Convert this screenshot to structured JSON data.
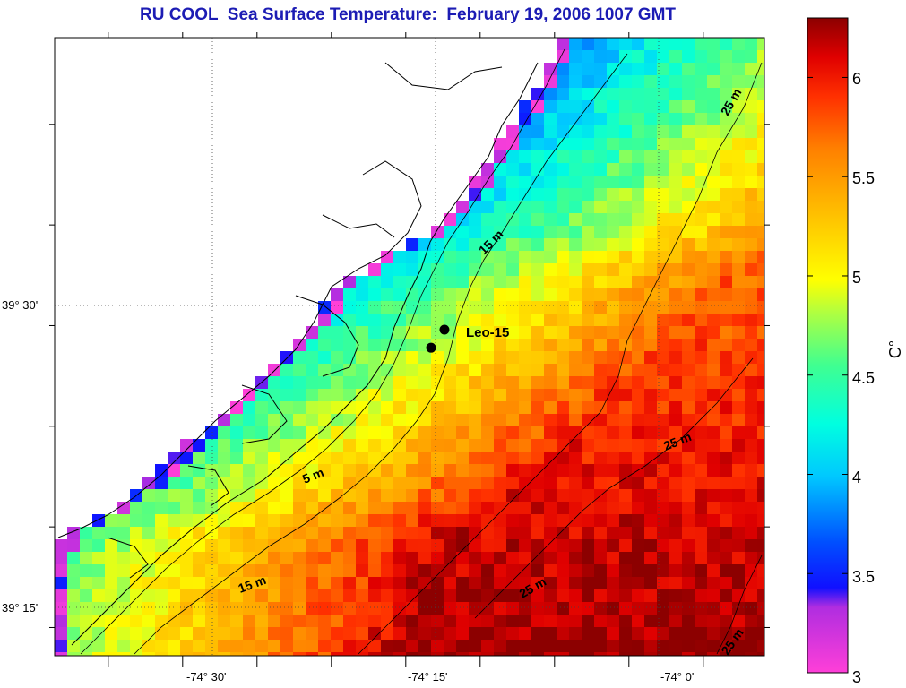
{
  "title": "RU COOL  Sea Surface Temperature:  February 19, 2006 1007 GMT",
  "map": {
    "x_ticks": [
      {
        "lon": -74.5,
        "label": "-74° 30'"
      },
      {
        "lon": -74.25,
        "label": "-74° 15'"
      },
      {
        "lon": -74.0,
        "label": "-74° 0'"
      }
    ],
    "y_ticks": [
      {
        "lat": 39.5,
        "label": "39° 30'"
      },
      {
        "lat": 39.25,
        "label": "39° 15'"
      }
    ],
    "grid": "dotted",
    "land_color": "#ffffff",
    "coastline_color": "#000000"
  },
  "contour_labels": [
    {
      "text": "15 m"
    },
    {
      "text": "25 m"
    },
    {
      "text": "25 m"
    },
    {
      "text": "5 m"
    },
    {
      "text": "15 m"
    },
    {
      "text": "25 m"
    },
    {
      "text": "25 m"
    }
  ],
  "stations": {
    "label": "Leo-15",
    "points": [
      {
        "lon": -74.24,
        "lat": 39.48
      },
      {
        "lon": -74.255,
        "lat": 39.465
      }
    ]
  },
  "colorbar": {
    "unit_label": "C°",
    "min": 3,
    "max": 6.3,
    "ticks": [
      {
        "value": 3,
        "label": "3"
      },
      {
        "value": 3.5,
        "label": "3.5"
      },
      {
        "value": 4,
        "label": "4"
      },
      {
        "value": 4.5,
        "label": "4.5"
      },
      {
        "value": 5,
        "label": "5"
      },
      {
        "value": 5.5,
        "label": "5.5"
      },
      {
        "value": 6,
        "label": "6"
      }
    ],
    "colors": [
      "#ff3fd8",
      "#b02de0",
      "#1010ff",
      "#0050ff",
      "#00c8ff",
      "#00ffe0",
      "#40ff90",
      "#b0ff40",
      "#ffff00",
      "#ffc000",
      "#ff8000",
      "#ff3000",
      "#e00000",
      "#8c0000"
    ]
  }
}
